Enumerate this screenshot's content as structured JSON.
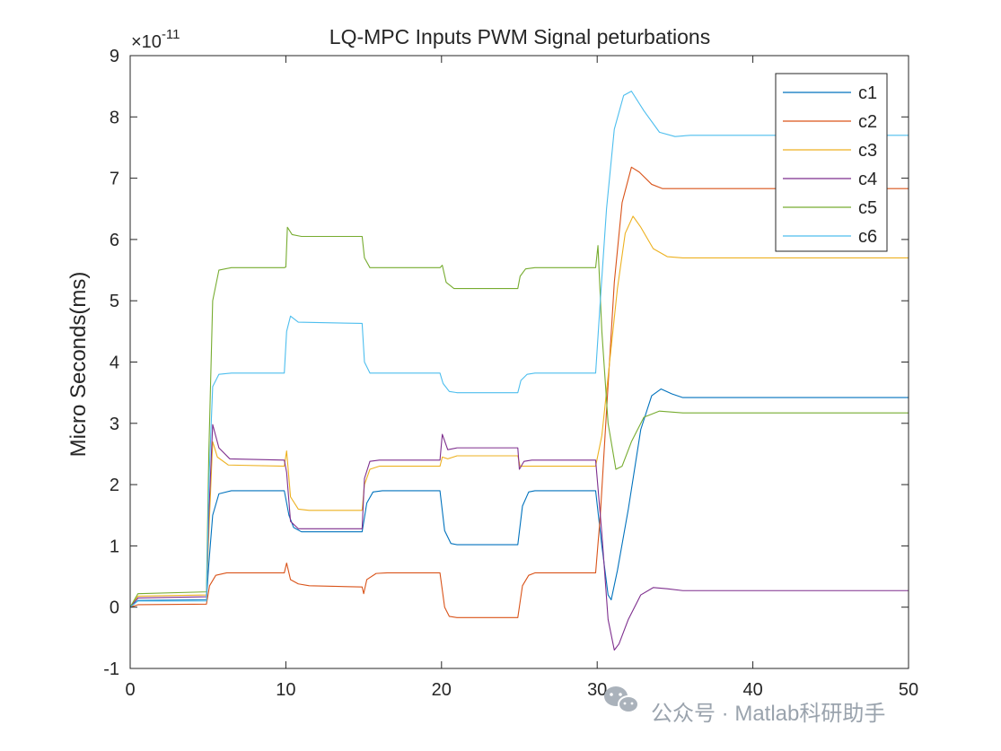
{
  "chart_data": {
    "type": "line",
    "title": "LQ-MPC Inputs PWM Signal peturbations",
    "xlabel": "",
    "ylabel": "Micro Seconds(ms)",
    "exponent_label": "×10",
    "exponent_power": "-11",
    "xlim": [
      0,
      50
    ],
    "ylim": [
      -1,
      9
    ],
    "xticks": [
      0,
      10,
      20,
      30,
      40,
      50
    ],
    "yticks": [
      -1,
      0,
      1,
      2,
      3,
      4,
      5,
      6,
      7,
      8,
      9
    ],
    "grid": false,
    "legend_position": "top-right",
    "series": [
      {
        "name": "c1",
        "color": "#0072BD",
        "points": [
          [
            0,
            0
          ],
          [
            0.5,
            0.11
          ],
          [
            4.9,
            0.12
          ],
          [
            5.05,
            0.7
          ],
          [
            5.3,
            1.5
          ],
          [
            5.7,
            1.85
          ],
          [
            6.5,
            1.9
          ],
          [
            9.9,
            1.9
          ],
          [
            10.2,
            1.5
          ],
          [
            10.5,
            1.3
          ],
          [
            11,
            1.23
          ],
          [
            14.9,
            1.23
          ],
          [
            15.2,
            1.7
          ],
          [
            15.6,
            1.88
          ],
          [
            16.2,
            1.9
          ],
          [
            19.9,
            1.9
          ],
          [
            20.2,
            1.25
          ],
          [
            20.6,
            1.04
          ],
          [
            21,
            1.02
          ],
          [
            24.9,
            1.02
          ],
          [
            25.2,
            1.65
          ],
          [
            25.6,
            1.88
          ],
          [
            26,
            1.9
          ],
          [
            29.9,
            1.9
          ],
          [
            30.3,
            1.0
          ],
          [
            30.7,
            0.2
          ],
          [
            30.9,
            0.12
          ],
          [
            31.3,
            0.6
          ],
          [
            32,
            1.6
          ],
          [
            32.8,
            2.9
          ],
          [
            33.5,
            3.45
          ],
          [
            34.1,
            3.56
          ],
          [
            34.8,
            3.48
          ],
          [
            35.5,
            3.42
          ],
          [
            50,
            3.42
          ]
        ]
      },
      {
        "name": "c2",
        "color": "#D95319",
        "points": [
          [
            0,
            0
          ],
          [
            0.5,
            0.04
          ],
          [
            4.9,
            0.05
          ],
          [
            5.1,
            0.35
          ],
          [
            5.5,
            0.52
          ],
          [
            6.2,
            0.56
          ],
          [
            9.9,
            0.56
          ],
          [
            10.05,
            0.72
          ],
          [
            10.3,
            0.45
          ],
          [
            10.8,
            0.38
          ],
          [
            11.5,
            0.35
          ],
          [
            14.9,
            0.33
          ],
          [
            15.0,
            0.22
          ],
          [
            15.2,
            0.45
          ],
          [
            15.8,
            0.55
          ],
          [
            16.5,
            0.56
          ],
          [
            19.9,
            0.56
          ],
          [
            20.2,
            0.0
          ],
          [
            20.5,
            -0.15
          ],
          [
            21,
            -0.17
          ],
          [
            24.9,
            -0.17
          ],
          [
            25.2,
            0.35
          ],
          [
            25.6,
            0.52
          ],
          [
            26,
            0.56
          ],
          [
            29.9,
            0.56
          ],
          [
            30.2,
            1.5
          ],
          [
            30.6,
            3.2
          ],
          [
            31.1,
            5.3
          ],
          [
            31.6,
            6.6
          ],
          [
            32.2,
            7.18
          ],
          [
            32.7,
            7.1
          ],
          [
            33.5,
            6.9
          ],
          [
            34.2,
            6.83
          ],
          [
            50,
            6.83
          ]
        ]
      },
      {
        "name": "c3",
        "color": "#EDB120",
        "points": [
          [
            0,
            0
          ],
          [
            0.5,
            0.18
          ],
          [
            4.9,
            0.2
          ],
          [
            5.05,
            1.2
          ],
          [
            5.3,
            2.7
          ],
          [
            5.6,
            2.45
          ],
          [
            6.3,
            2.32
          ],
          [
            9.9,
            2.3
          ],
          [
            10.05,
            2.55
          ],
          [
            10.3,
            1.8
          ],
          [
            10.8,
            1.6
          ],
          [
            11.5,
            1.58
          ],
          [
            14.9,
            1.58
          ],
          [
            15.05,
            2.0
          ],
          [
            15.4,
            2.25
          ],
          [
            16,
            2.3
          ],
          [
            19.9,
            2.3
          ],
          [
            20.05,
            2.45
          ],
          [
            20.4,
            2.42
          ],
          [
            21,
            2.47
          ],
          [
            24.9,
            2.47
          ],
          [
            25.05,
            2.3
          ],
          [
            25.4,
            2.3
          ],
          [
            29.9,
            2.3
          ],
          [
            30.3,
            2.8
          ],
          [
            30.8,
            4.0
          ],
          [
            31.3,
            5.2
          ],
          [
            31.8,
            6.1
          ],
          [
            32.3,
            6.38
          ],
          [
            32.8,
            6.2
          ],
          [
            33.6,
            5.85
          ],
          [
            34.5,
            5.72
          ],
          [
            35.5,
            5.7
          ],
          [
            50,
            5.7
          ]
        ]
      },
      {
        "name": "c4",
        "color": "#7E2F8E",
        "points": [
          [
            0,
            0
          ],
          [
            0.5,
            0.15
          ],
          [
            4.9,
            0.17
          ],
          [
            5.05,
            1.5
          ],
          [
            5.3,
            2.98
          ],
          [
            5.7,
            2.6
          ],
          [
            6.4,
            2.42
          ],
          [
            9.9,
            2.4
          ],
          [
            10.05,
            2.2
          ],
          [
            10.3,
            1.4
          ],
          [
            10.8,
            1.28
          ],
          [
            11.5,
            1.28
          ],
          [
            14.9,
            1.28
          ],
          [
            15.05,
            2.1
          ],
          [
            15.4,
            2.38
          ],
          [
            16,
            2.4
          ],
          [
            19.9,
            2.4
          ],
          [
            20.05,
            2.82
          ],
          [
            20.4,
            2.57
          ],
          [
            21,
            2.6
          ],
          [
            24.9,
            2.6
          ],
          [
            25.0,
            2.25
          ],
          [
            25.3,
            2.38
          ],
          [
            25.8,
            2.4
          ],
          [
            29.9,
            2.4
          ],
          [
            30.3,
            1.2
          ],
          [
            30.7,
            -0.2
          ],
          [
            31.1,
            -0.7
          ],
          [
            31.4,
            -0.6
          ],
          [
            32,
            -0.2
          ],
          [
            32.8,
            0.2
          ],
          [
            33.6,
            0.32
          ],
          [
            34.5,
            0.3
          ],
          [
            35.5,
            0.27
          ],
          [
            50,
            0.27
          ]
        ]
      },
      {
        "name": "c5",
        "color": "#77AC30",
        "points": [
          [
            0,
            0
          ],
          [
            0.5,
            0.22
          ],
          [
            4.9,
            0.25
          ],
          [
            5.05,
            2.5
          ],
          [
            5.3,
            5.0
          ],
          [
            5.7,
            5.5
          ],
          [
            6.5,
            5.54
          ],
          [
            9.9,
            5.54
          ],
          [
            10.0,
            5.55
          ],
          [
            10.1,
            6.2
          ],
          [
            10.4,
            6.08
          ],
          [
            11,
            6.05
          ],
          [
            14.9,
            6.05
          ],
          [
            15.05,
            5.7
          ],
          [
            15.4,
            5.54
          ],
          [
            16,
            5.54
          ],
          [
            19.9,
            5.54
          ],
          [
            20.05,
            5.58
          ],
          [
            20.3,
            5.3
          ],
          [
            20.8,
            5.2
          ],
          [
            24.9,
            5.2
          ],
          [
            25.05,
            5.4
          ],
          [
            25.4,
            5.52
          ],
          [
            26,
            5.54
          ],
          [
            29.9,
            5.54
          ],
          [
            30.05,
            5.9
          ],
          [
            30.3,
            4.5
          ],
          [
            30.7,
            3.0
          ],
          [
            31.2,
            2.25
          ],
          [
            31.6,
            2.3
          ],
          [
            32.2,
            2.7
          ],
          [
            33,
            3.1
          ],
          [
            34,
            3.2
          ],
          [
            35.5,
            3.17
          ],
          [
            50,
            3.17
          ]
        ]
      },
      {
        "name": "c6",
        "color": "#4DBEEE",
        "points": [
          [
            0,
            0
          ],
          [
            0.5,
            0.1
          ],
          [
            4.9,
            0.1
          ],
          [
            5.05,
            2.0
          ],
          [
            5.3,
            3.6
          ],
          [
            5.7,
            3.8
          ],
          [
            6.5,
            3.82
          ],
          [
            9.9,
            3.82
          ],
          [
            10.05,
            4.5
          ],
          [
            10.3,
            4.75
          ],
          [
            10.8,
            4.65
          ],
          [
            14.9,
            4.63
          ],
          [
            15.05,
            4.0
          ],
          [
            15.4,
            3.82
          ],
          [
            16,
            3.82
          ],
          [
            19.9,
            3.82
          ],
          [
            20.1,
            3.65
          ],
          [
            20.5,
            3.52
          ],
          [
            21,
            3.5
          ],
          [
            24.9,
            3.5
          ],
          [
            25.1,
            3.7
          ],
          [
            25.5,
            3.8
          ],
          [
            26,
            3.82
          ],
          [
            29.9,
            3.82
          ],
          [
            30.2,
            5.0
          ],
          [
            30.6,
            6.5
          ],
          [
            31.1,
            7.8
          ],
          [
            31.7,
            8.35
          ],
          [
            32.2,
            8.42
          ],
          [
            33,
            8.1
          ],
          [
            34,
            7.75
          ],
          [
            35,
            7.68
          ],
          [
            36,
            7.7
          ],
          [
            50,
            7.7
          ]
        ]
      }
    ]
  },
  "watermark": {
    "text": "公众号 · Matlab科研助手",
    "icon": "wechat-icon",
    "color": "#9aa3ad"
  }
}
